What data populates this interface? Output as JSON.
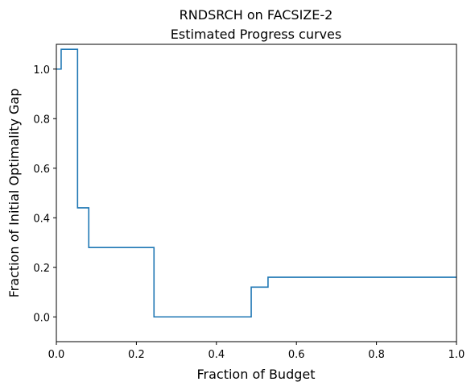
{
  "chart_data": {
    "type": "line",
    "title_line1": "RNDSRCH on FACSIZE-2",
    "title_line2": "Estimated Progress curves",
    "xlabel": "Fraction of Budget",
    "ylabel": "Fraction of Initial Optimality Gap",
    "xlim": [
      0,
      1
    ],
    "ylim": [
      -0.1,
      1.1
    ],
    "xticks": [
      0.0,
      0.2,
      0.4,
      0.6,
      0.8,
      1.0
    ],
    "xtick_labels": [
      "0.0",
      "0.2",
      "0.4",
      "0.6",
      "0.8",
      "1.0"
    ],
    "yticks": [
      0.0,
      0.2,
      0.4,
      0.6,
      0.8,
      1.0
    ],
    "ytick_labels": [
      "0.0",
      "0.2",
      "0.4",
      "0.6",
      "0.8",
      "1.0"
    ],
    "grid": false,
    "series": [
      {
        "color": "#1f77b4",
        "step": "post",
        "x": [
          0.0,
          0.012,
          0.053,
          0.081,
          0.244,
          0.487,
          0.529,
          1.0
        ],
        "y": [
          1.0,
          1.08,
          0.44,
          0.28,
          0.0,
          0.12,
          0.16,
          0.16
        ]
      }
    ]
  }
}
